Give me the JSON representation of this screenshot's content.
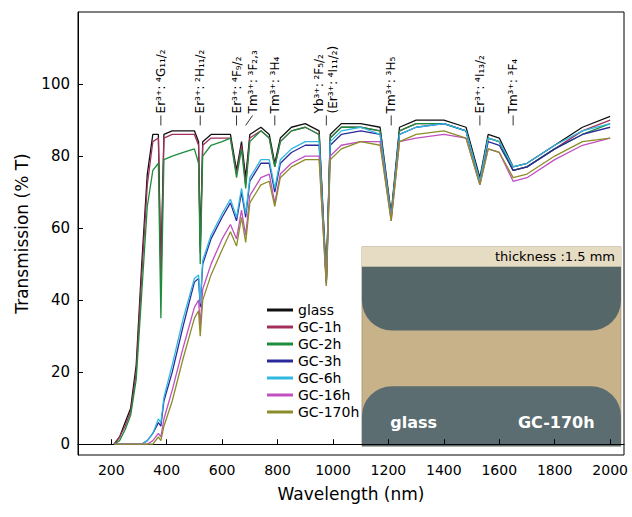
{
  "chart_data": {
    "type": "line",
    "x_label": "Wavelength (nm)",
    "y_label": "Transmission (% T)",
    "x": [
      210,
      230,
      250,
      270,
      290,
      310,
      330,
      350,
      370,
      379,
      390,
      420,
      460,
      500,
      515,
      521,
      530,
      560,
      600,
      630,
      652,
      670,
      685,
      700,
      740,
      770,
      790,
      810,
      850,
      900,
      950,
      976,
      990,
      1030,
      1100,
      1170,
      1210,
      1240,
      1300,
      1400,
      1480,
      1530,
      1560,
      1600,
      1650,
      1700,
      1800,
      1900,
      2000
    ],
    "series": [
      {
        "name": "glass",
        "color": "#111111",
        "values": [
          0,
          2,
          6,
          10,
          22,
          50,
          75,
          86,
          86,
          48,
          86,
          87,
          87,
          87,
          84,
          55,
          84,
          86,
          86,
          86,
          76,
          84,
          74,
          86,
          88,
          86,
          78,
          85,
          88,
          89,
          87,
          46,
          86,
          89,
          89,
          88,
          64,
          88,
          90,
          90,
          88,
          74,
          86,
          85,
          77,
          78,
          83,
          88,
          91
        ]
      },
      {
        "name": "GC-1h",
        "color": "#a3305c",
        "values": [
          0,
          2,
          5,
          9,
          20,
          47,
          72,
          84,
          85,
          44,
          85,
          86,
          86,
          86,
          83,
          53,
          83,
          85,
          85,
          85,
          75,
          83,
          72,
          85,
          87,
          85,
          77,
          84,
          87,
          88,
          86,
          45,
          85,
          88,
          88,
          87,
          63,
          87,
          89,
          89,
          87,
          73,
          85,
          84,
          76,
          77,
          82,
          87,
          90
        ]
      },
      {
        "name": "GC-2h",
        "color": "#1e8c3c",
        "values": [
          0,
          1,
          4,
          8,
          18,
          42,
          66,
          76,
          78,
          35,
          79,
          80,
          81,
          82,
          78,
          50,
          80,
          83,
          84,
          85,
          74,
          82,
          71,
          84,
          87,
          85,
          77,
          84,
          87,
          88,
          86,
          45,
          85,
          88,
          88,
          87,
          63,
          87,
          89,
          89,
          87,
          73,
          85,
          84,
          76,
          77,
          82,
          86,
          89
        ]
      },
      {
        "name": "GC-3h",
        "color": "#2a2a9a",
        "values": [
          0,
          0,
          0,
          0,
          0,
          0,
          1,
          3,
          6,
          5,
          12,
          20,
          33,
          45,
          46,
          38,
          50,
          57,
          63,
          67,
          62,
          70,
          63,
          73,
          78,
          78,
          70,
          78,
          81,
          83,
          83,
          45,
          83,
          86,
          87,
          86,
          63,
          86,
          88,
          89,
          87,
          73,
          84,
          83,
          76,
          77,
          82,
          86,
          88
        ]
      },
      {
        "name": "GC-6h",
        "color": "#30b8e0",
        "values": [
          0,
          0,
          0,
          0,
          0,
          0,
          1,
          3,
          7,
          6,
          13,
          22,
          35,
          46,
          47,
          39,
          51,
          58,
          64,
          68,
          63,
          71,
          64,
          74,
          79,
          79,
          71,
          79,
          82,
          84,
          84,
          45,
          84,
          87,
          88,
          86,
          63,
          86,
          88,
          89,
          87,
          73,
          85,
          84,
          77,
          78,
          83,
          87,
          89
        ]
      },
      {
        "name": "GC-16h",
        "color": "#c050c0",
        "values": [
          0,
          0,
          0,
          0,
          0,
          0,
          0,
          1,
          3,
          2,
          7,
          15,
          27,
          38,
          40,
          33,
          43,
          50,
          57,
          61,
          57,
          65,
          58,
          69,
          74,
          75,
          67,
          75,
          78,
          80,
          80,
          44,
          80,
          83,
          84,
          84,
          62,
          84,
          85,
          86,
          85,
          72,
          82,
          81,
          73,
          74,
          79,
          83,
          85
        ]
      },
      {
        "name": "GC-170h",
        "color": "#8c8c28",
        "values": [
          0,
          0,
          0,
          0,
          0,
          0,
          0,
          0,
          2,
          1,
          5,
          12,
          24,
          35,
          37,
          30,
          40,
          47,
          54,
          59,
          55,
          63,
          56,
          67,
          72,
          73,
          66,
          74,
          77,
          79,
          79,
          44,
          79,
          82,
          84,
          83,
          62,
          84,
          86,
          87,
          85,
          72,
          82,
          81,
          74,
          75,
          80,
          84,
          85
        ]
      }
    ],
    "xlim": [
      80,
      2050
    ],
    "ylim": [
      -3,
      120
    ],
    "xticks": [
      200,
      400,
      600,
      800,
      1000,
      1200,
      1400,
      1600,
      1800,
      2000
    ],
    "yticks": [
      0,
      20,
      40,
      60,
      80,
      100
    ],
    "grid": false,
    "legend": "lower center",
    "annotations": [
      {
        "x": 379,
        "y": 91,
        "label": "Er³⁺: ⁴G₁₁/₂"
      },
      {
        "x": 521,
        "y": 91,
        "label": "Er³⁺: ²H₁₁/₂"
      },
      {
        "x": 652,
        "y": 91,
        "label": "Er³⁺: ⁴F₉/₂"
      },
      {
        "x": 685,
        "y": 91,
        "label": "Tm³⁺: ³F₂,₃"
      },
      {
        "x": 790,
        "y": 91,
        "label": "Tm³⁺: ³H₄"
      },
      {
        "x": 976,
        "y": 91,
        "label": [
          "Yb³⁺: ²F₅/₂",
          "(Er³⁺: ⁴I₁₁/₂)"
        ]
      },
      {
        "x": 1210,
        "y": 91,
        "label": "Tm³⁺: ³H₅"
      },
      {
        "x": 1530,
        "y": 91,
        "label": "Er³⁺: ⁴I₁₃/₂"
      },
      {
        "x": 1650,
        "y": 91,
        "label": "Tm³⁺: ³F₄"
      }
    ],
    "inset": {
      "title": "thickness :1.5 mm",
      "labels": [
        "glass",
        "GC-170h"
      ]
    }
  }
}
